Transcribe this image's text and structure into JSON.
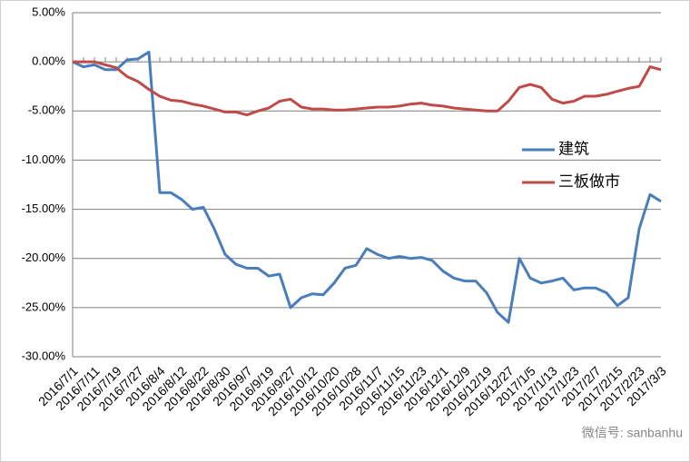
{
  "chart_data": {
    "type": "line",
    "categories": [
      "2016/7/1",
      null,
      "2016/7/11",
      null,
      "2016/7/19",
      null,
      "2016/7/27",
      null,
      "2016/8/4",
      null,
      "2016/8/12",
      null,
      "2016/8/22",
      null,
      "2016/8/30",
      null,
      "2016/9/7",
      null,
      "2016/9/19",
      null,
      "2016/9/27",
      null,
      "2016/10/12",
      null,
      "2016/10/20",
      null,
      "2016/10/28",
      null,
      "2016/11/7",
      null,
      "2016/11/15",
      null,
      "2016/11/23",
      null,
      "2016/12/1",
      null,
      "2016/12/9",
      null,
      "2016/12/19",
      null,
      "2016/12/27",
      null,
      "2017/1/5",
      null,
      "2017/1/13",
      null,
      "2017/1/23",
      null,
      "2017/2/7",
      null,
      "2017/2/15",
      null,
      "2017/2/23",
      null,
      "2017/3/3"
    ],
    "series": [
      {
        "name": "建筑",
        "color": "#4a7ebb",
        "values": [
          0,
          -0.5,
          -0.3,
          -0.8,
          -0.8,
          0.2,
          0.3,
          1.0,
          -13.3,
          -13.3,
          -14.0,
          -15.0,
          -14.8,
          -17.0,
          -19.6,
          -20.6,
          -21.0,
          -21.0,
          -21.8,
          -21.6,
          -25.0,
          -24.0,
          -23.6,
          -23.7,
          -22.5,
          -21.0,
          -20.7,
          -19.0,
          -19.6,
          -20.0,
          -19.8,
          -20.0,
          -19.9,
          -20.2,
          -21.3,
          -22.0,
          -22.3,
          -22.3,
          -23.5,
          -25.5,
          -26.5,
          -20.0,
          -22.0,
          -22.5,
          -22.3,
          -22.0,
          -23.2,
          -23.0,
          -23.0,
          -23.5,
          -24.8,
          -24.0,
          -17.0,
          -13.5,
          -14.2
        ]
      },
      {
        "name": "三板做市",
        "color": "#be4b48",
        "values": [
          0,
          0,
          0,
          -0.3,
          -0.6,
          -1.5,
          -2.0,
          -2.8,
          -3.5,
          -3.9,
          -4.0,
          -4.3,
          -4.5,
          -4.8,
          -5.1,
          -5.1,
          -5.4,
          -5.0,
          -4.7,
          -4.0,
          -3.8,
          -4.6,
          -4.8,
          -4.8,
          -4.9,
          -4.9,
          -4.8,
          -4.7,
          -4.6,
          -4.6,
          -4.5,
          -4.3,
          -4.2,
          -4.4,
          -4.5,
          -4.7,
          -4.8,
          -4.9,
          -5.0,
          -5.0,
          -4.0,
          -2.6,
          -2.3,
          -2.6,
          -3.8,
          -4.2,
          -4.0,
          -3.5,
          -3.5,
          -3.3,
          -3.0,
          -2.7,
          -2.5,
          -0.5,
          -0.8
        ]
      }
    ],
    "ylim": [
      -30,
      5
    ],
    "yticks": [
      {
        "value": 5,
        "label": "5.00%"
      },
      {
        "value": 0,
        "label": "0.00%"
      },
      {
        "value": -5,
        "label": "-5.00%"
      },
      {
        "value": -10,
        "label": "-10.00%"
      },
      {
        "value": -15,
        "label": "-15.00%"
      },
      {
        "value": -20,
        "label": "-20.00%"
      },
      {
        "value": -25,
        "label": "-25.00%"
      },
      {
        "value": -30,
        "label": "-30.00%"
      }
    ],
    "grid": true,
    "legend": "right",
    "watermark": "微信号: sanbanhu"
  }
}
